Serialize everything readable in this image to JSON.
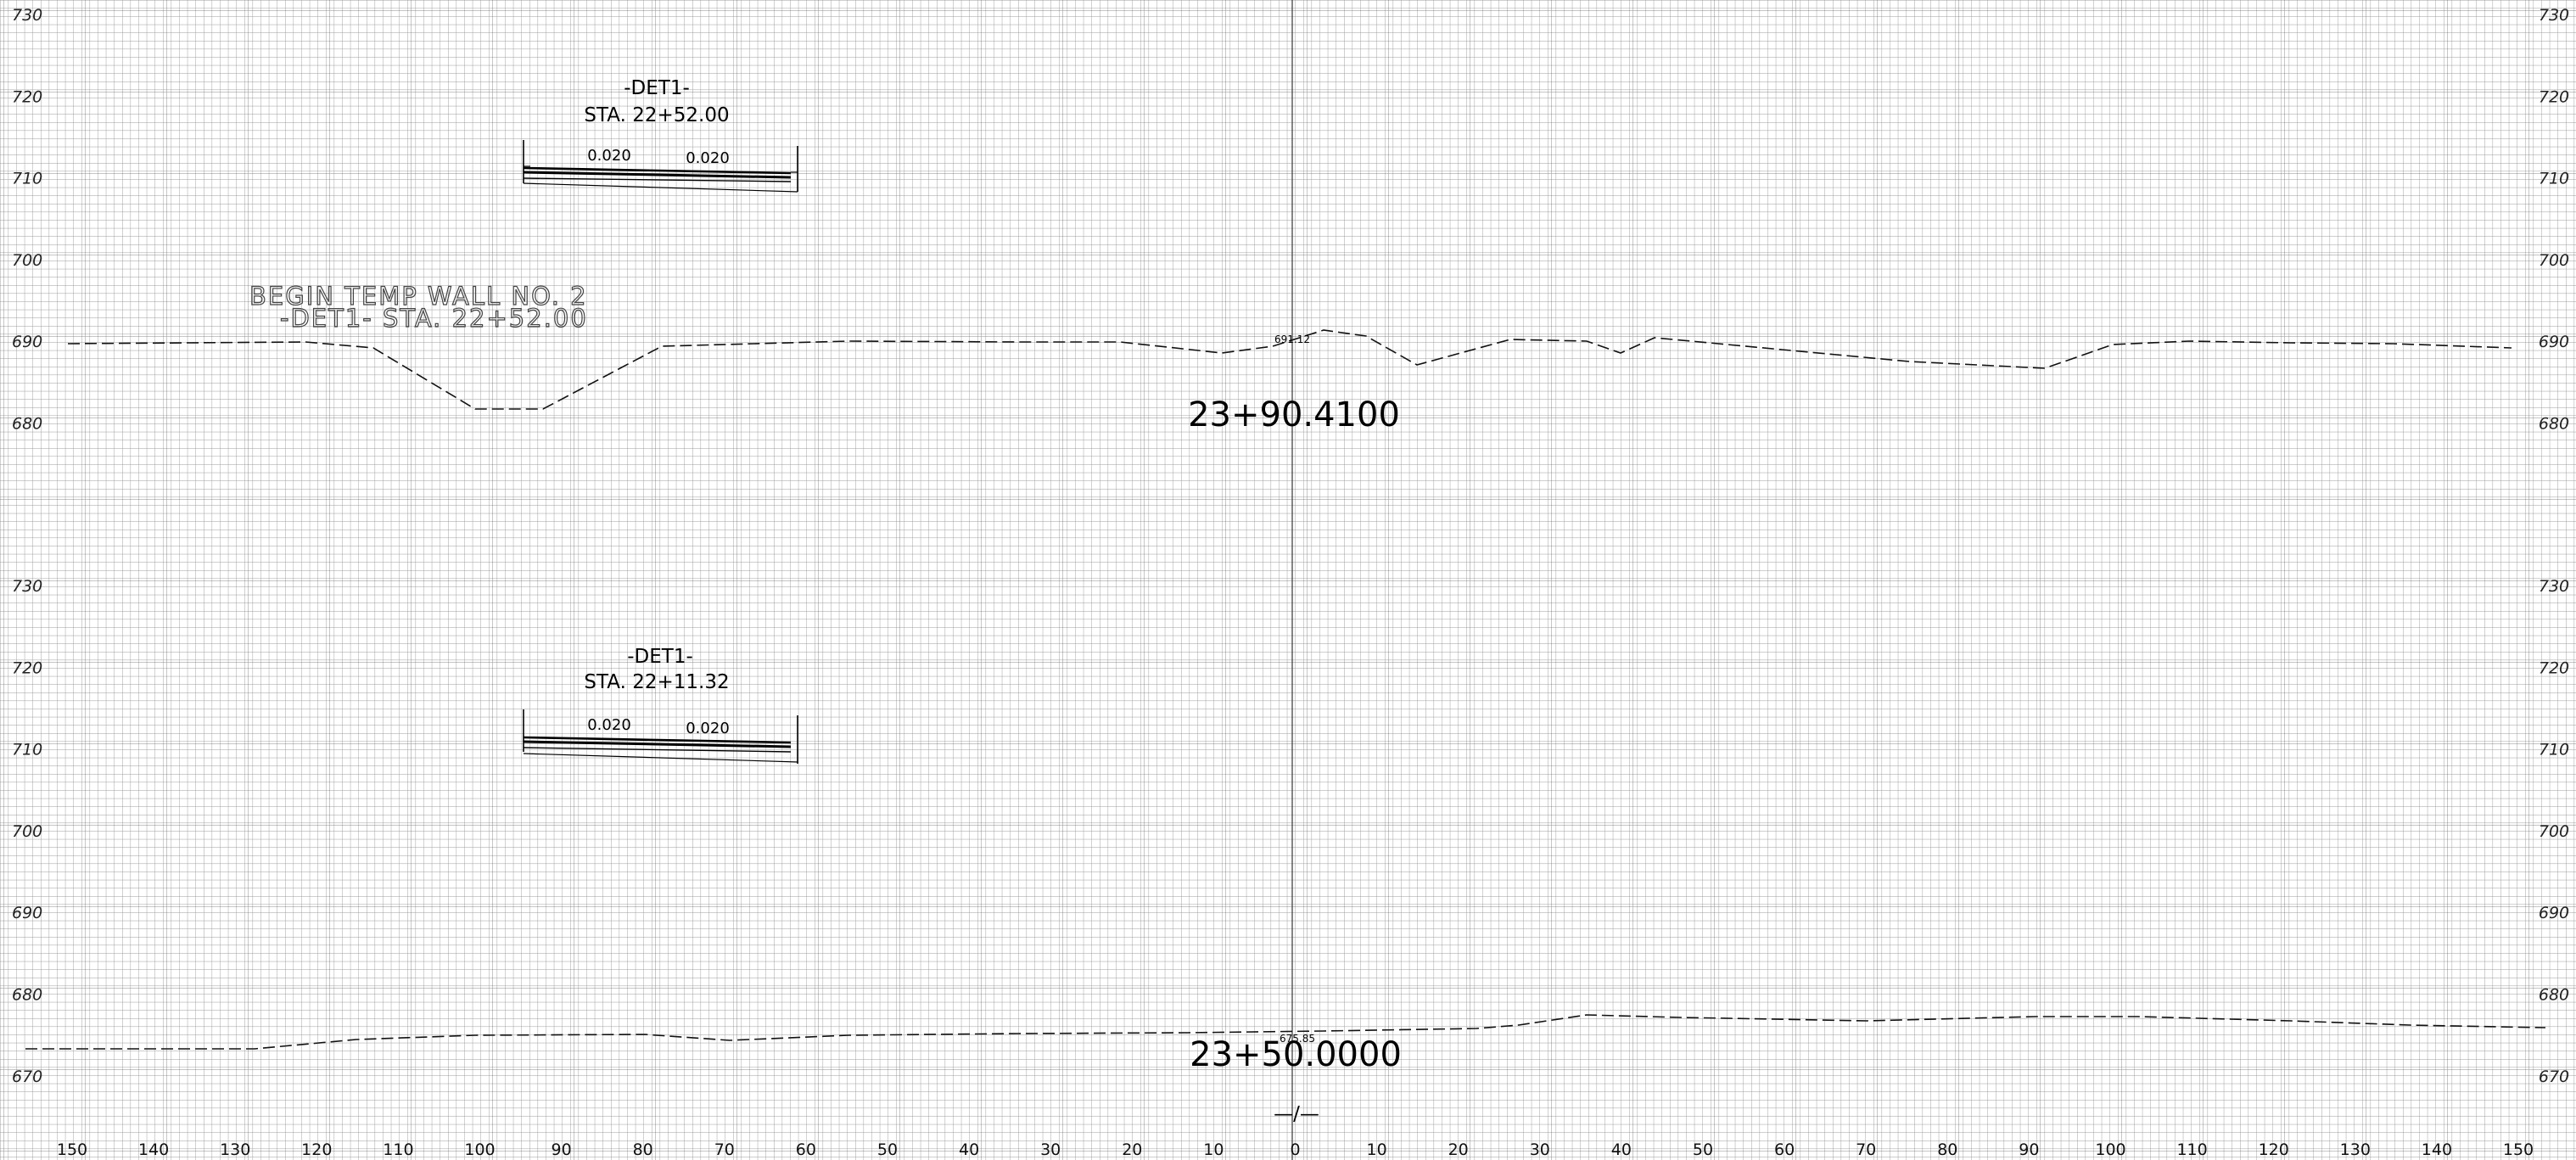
{
  "grid": {
    "minor_color": "#9a9a9a",
    "major_color": "#555555"
  },
  "elevation_labels": [
    "730",
    "720",
    "710",
    "700",
    "690",
    "680",
    "670"
  ],
  "offset_labels": [
    "150",
    "140",
    "130",
    "120",
    "110",
    "100",
    "90",
    "80",
    "70",
    "60",
    "50",
    "40",
    "30",
    "20",
    "10",
    "0",
    "10",
    "20",
    "30",
    "40",
    "50",
    "60",
    "70",
    "80",
    "90",
    "100",
    "110",
    "120",
    "130",
    "140",
    "150"
  ],
  "upper_section": {
    "station": "23+90.4100",
    "detail_title": "-DET1-",
    "detail_station": "STA. 22+52.00",
    "slope_left": "0.020",
    "slope_right": "0.020",
    "note_line1": "BEGIN TEMP WALL NO. 2",
    "note_line2": "-DET1- STA. 22+52.00",
    "ground_label": "691.12"
  },
  "lower_section": {
    "station": "23+50.0000",
    "detail_title": "-DET1-",
    "detail_station": "STA. 22+11.32",
    "slope_left": "0.020",
    "slope_right": "0.020",
    "ground_label": "675.85"
  },
  "centerline_symbol": "—/—"
}
